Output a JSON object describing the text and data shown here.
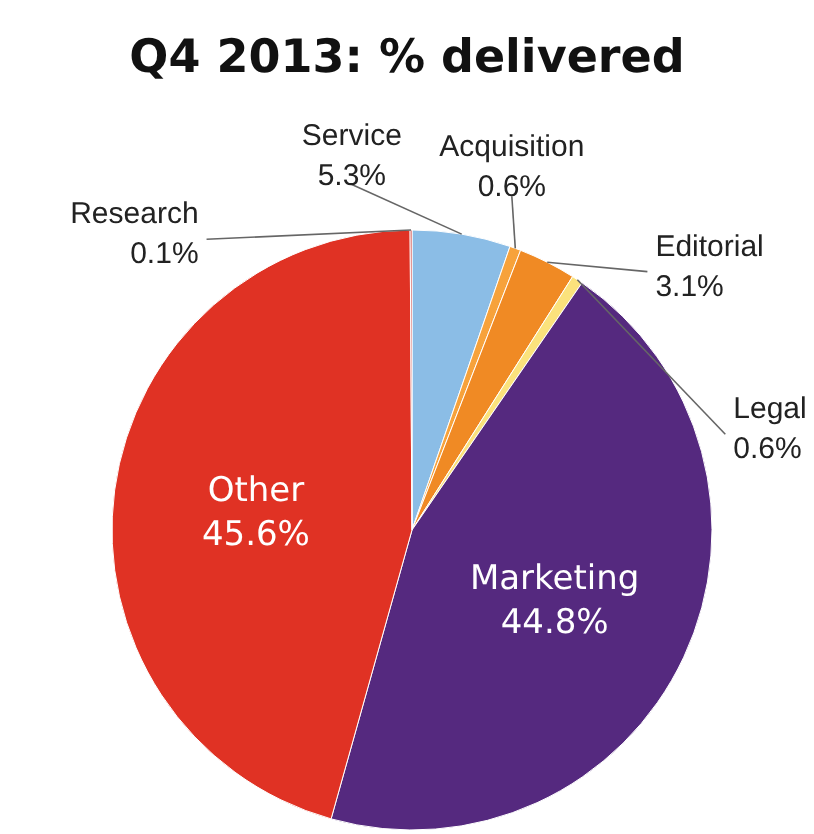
{
  "chart_data": {
    "type": "pie",
    "title": "Q4 2013: % delivered",
    "categories": [
      "Service",
      "Acquisition",
      "Editorial",
      "Legal",
      "Marketing",
      "Other",
      "Research"
    ],
    "values": [
      5.3,
      0.6,
      3.1,
      0.6,
      44.8,
      45.6,
      0.1
    ],
    "colors": [
      "#8bbde6",
      "#f7a23b",
      "#f08a24",
      "#fbe27c",
      "#55297f",
      "#e03224",
      "#c9302c"
    ],
    "value_labels": [
      "5.3%",
      "0.6%",
      "3.1%",
      "0.6%",
      "44.8%",
      "45.6%",
      "0.1%"
    ]
  }
}
